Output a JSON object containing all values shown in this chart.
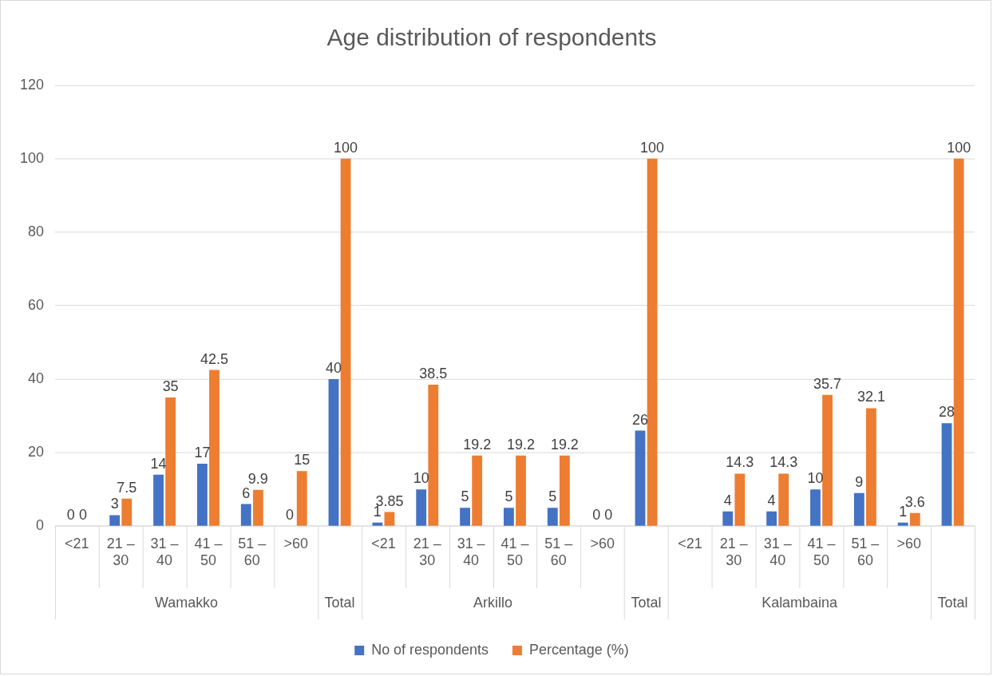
{
  "chart_data": {
    "type": "bar",
    "title": "Age distribution of respondents",
    "categories": [
      "<21",
      "21 – 30",
      "31 – 40",
      "41 – 50",
      "51 – 60",
      ">60",
      null,
      "<21",
      "21 – 30",
      "31 – 40",
      "41 – 50",
      "51 – 60",
      ">60",
      null,
      "<21",
      "21 – 30",
      "31 – 40",
      "41 – 50",
      "51 – 60",
      ">60",
      null
    ],
    "annotations": [
      "Wamakko",
      "Total",
      "Arkillo",
      "Total",
      "Kalambaina",
      "Total"
    ],
    "series": [
      {
        "name": "No of respondents",
        "color": "#4472c4",
        "values": [
          0,
          3,
          14,
          17,
          6,
          0,
          40,
          1,
          10,
          5,
          5,
          5,
          0,
          26,
          null,
          4,
          4,
          10,
          9,
          1,
          28
        ]
      },
      {
        "name": "Percentage (%)",
        "color": "#ed7d31",
        "values": [
          0,
          7.5,
          35,
          42.5,
          9.9,
          15,
          100,
          3.85,
          38.5,
          19.2,
          19.2,
          19.2,
          0,
          100,
          null,
          14.3,
          14.3,
          35.7,
          32.1,
          3.6,
          100
        ]
      }
    ],
    "ylim": [
      0,
      120
    ],
    "yticks": [
      0,
      20,
      40,
      60,
      80,
      100,
      120
    ],
    "grid": "y",
    "legend": "bottom",
    "data_labels": true
  }
}
